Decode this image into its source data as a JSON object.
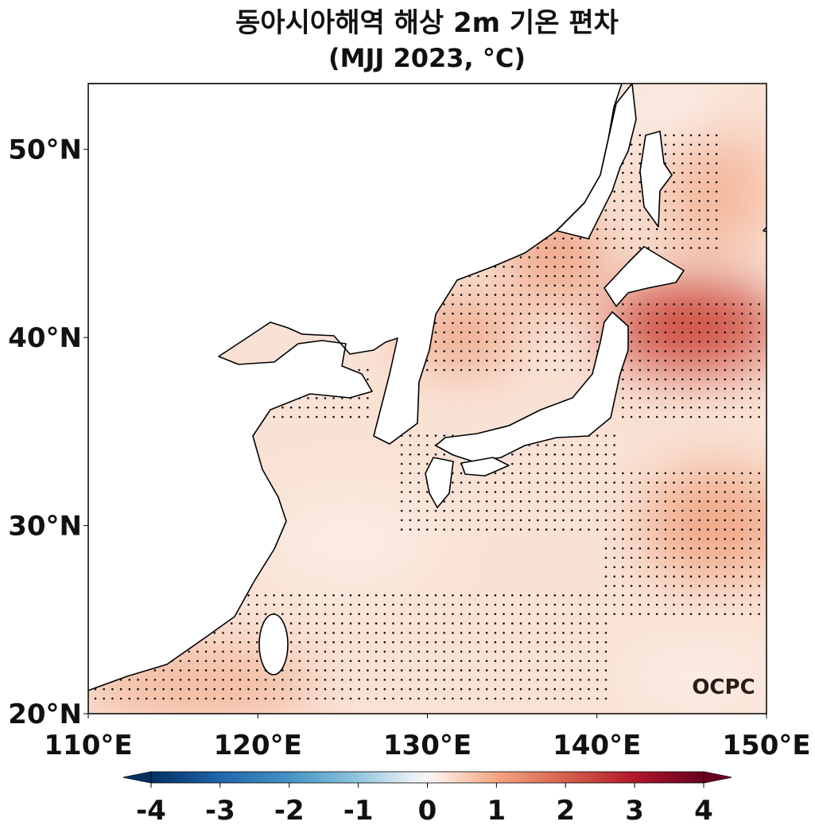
{
  "header": {
    "title": "동아시아해역 해상 2m 기온 편차",
    "subtitle": "(MJJ 2023, °C)"
  },
  "map": {
    "lon_range": [
      110,
      150
    ],
    "lat_range": [
      20,
      53.5
    ],
    "lon_ticks": [
      {
        "value": 110,
        "label": "110°E"
      },
      {
        "value": 120,
        "label": "120°E"
      },
      {
        "value": 130,
        "label": "130°E"
      },
      {
        "value": 140,
        "label": "140°E"
      },
      {
        "value": 150,
        "label": "150°E"
      }
    ],
    "lat_ticks": [
      {
        "value": 20,
        "label": "20°N"
      },
      {
        "value": 30,
        "label": "30°N"
      },
      {
        "value": 40,
        "label": "40°N"
      },
      {
        "value": 50,
        "label": "50°N"
      }
    ],
    "watermark": "OCPC"
  },
  "colorbar": {
    "lim": [
      -4,
      4
    ],
    "ticks": [
      -4,
      -3,
      -2,
      -1,
      0,
      1,
      2,
      3,
      4
    ]
  }
}
